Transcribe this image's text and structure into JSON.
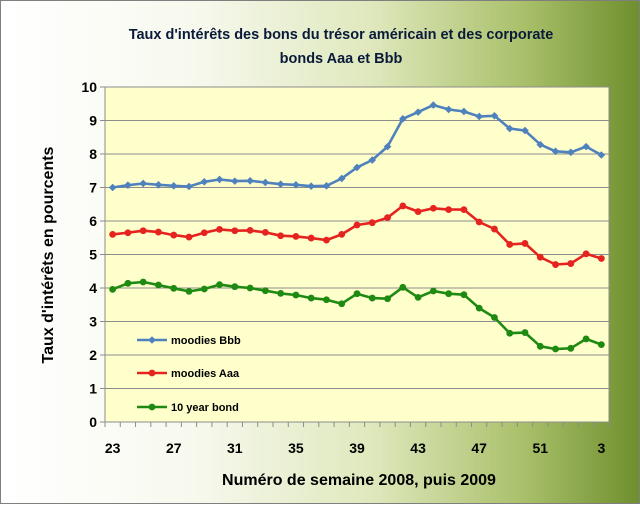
{
  "chart_data": {
    "type": "line",
    "title_lines": [
      "Taux d'intérêts des bons du trésor américain et des corporate",
      "bonds Aaa et Bbb"
    ],
    "xlabel": "Numéro de semaine  2008, puis 2009",
    "ylabel": "Taux d'intérêts en pourcents",
    "ylim": [
      0,
      10
    ],
    "yticks": [
      "0",
      "1",
      "2",
      "3",
      "4",
      "5",
      "6",
      "7",
      "8",
      "9",
      "10"
    ],
    "xtick_labels": [
      "23",
      "27",
      "31",
      "35",
      "39",
      "43",
      "47",
      "51",
      "3"
    ],
    "xtick_every": 4,
    "grid": true,
    "legend_position": "lower-left",
    "series": [
      {
        "name": "moodies Bbb",
        "color": "#4f81bd",
        "marker": "diamond",
        "values": [
          7.0,
          7.07,
          7.12,
          7.08,
          7.05,
          7.03,
          7.17,
          7.24,
          7.19,
          7.2,
          7.15,
          7.1,
          7.08,
          7.04,
          7.05,
          7.27,
          7.6,
          7.82,
          8.22,
          9.05,
          9.25,
          9.46,
          9.33,
          9.27,
          9.12,
          9.14,
          8.76,
          8.7,
          8.28,
          8.08,
          8.05,
          8.22,
          7.97
        ]
      },
      {
        "name": "moodies Aaa",
        "color": "#e52420",
        "marker": "circle",
        "values": [
          5.6,
          5.65,
          5.71,
          5.67,
          5.58,
          5.52,
          5.65,
          5.75,
          5.71,
          5.72,
          5.66,
          5.56,
          5.54,
          5.49,
          5.43,
          5.6,
          5.88,
          5.95,
          6.1,
          6.45,
          6.28,
          6.38,
          6.34,
          6.34,
          5.97,
          5.76,
          5.3,
          5.33,
          4.92,
          4.7,
          4.73,
          5.02,
          4.88
        ]
      },
      {
        "name": "10 year bond",
        "color": "#1e8a12",
        "marker": "circle",
        "values": [
          3.96,
          4.14,
          4.18,
          4.09,
          3.99,
          3.9,
          3.97,
          4.1,
          4.04,
          4.0,
          3.92,
          3.84,
          3.79,
          3.7,
          3.65,
          3.53,
          3.83,
          3.7,
          3.68,
          4.02,
          3.72,
          3.91,
          3.83,
          3.8,
          3.4,
          3.12,
          2.65,
          2.67,
          2.26,
          2.18,
          2.2,
          2.48,
          2.31
        ]
      }
    ]
  }
}
